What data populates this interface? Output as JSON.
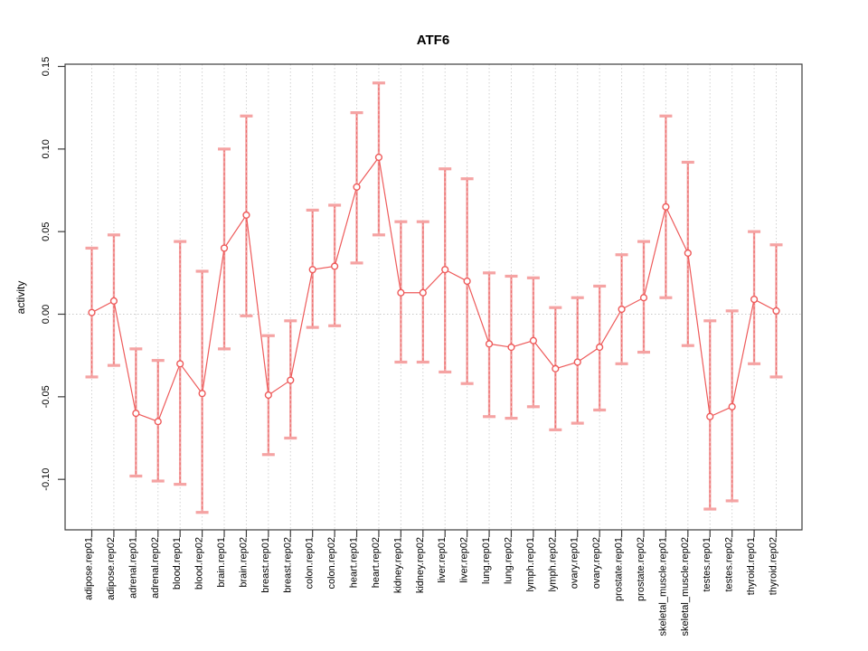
{
  "chart_data": {
    "type": "line",
    "title": "ATF6",
    "xlabel": "",
    "ylabel": "activity",
    "ylim": [
      -0.13,
      0.151
    ],
    "yticks": [
      -0.1,
      -0.05,
      0.0,
      0.05,
      0.1,
      0.15
    ],
    "grid": "vertical dotted gridline at every category; dotted horizontal line at y=0",
    "legend_position": "none",
    "point_style": "open-circle-with-error-bars",
    "categories": [
      "adipose.rep01",
      "adipose.rep02",
      "adrenal.rep01",
      "adrenal.rep02",
      "blood.rep01",
      "blood.rep02",
      "brain.rep01",
      "brain.rep02",
      "breast.rep01",
      "breast.rep02",
      "colon.rep01",
      "colon.rep02",
      "heart.rep01",
      "heart.rep02",
      "kidney.rep01",
      "kidney.rep02",
      "liver.rep01",
      "liver.rep02",
      "lung.rep01",
      "lung.rep02",
      "lymph.rep01",
      "lymph.rep02",
      "ovary.rep01",
      "ovary.rep02",
      "prostate.rep01",
      "prostate.rep02",
      "skeletal_muscle.rep01",
      "skeletal_muscle.rep02",
      "testes.rep01",
      "testes.rep02",
      "thyroid.rep01",
      "thyroid.rep02"
    ],
    "series": [
      {
        "name": "activity",
        "values": [
          0.001,
          0.008,
          -0.06,
          -0.065,
          -0.03,
          -0.048,
          0.04,
          0.06,
          -0.049,
          -0.04,
          0.027,
          0.029,
          0.077,
          0.095,
          0.013,
          0.013,
          0.027,
          0.02,
          -0.018,
          -0.02,
          -0.016,
          -0.033,
          -0.029,
          -0.02,
          0.003,
          0.01,
          0.065,
          0.037,
          -0.062,
          -0.056,
          0.009,
          0.002
        ],
        "error_low": [
          -0.038,
          -0.031,
          -0.098,
          -0.101,
          -0.103,
          -0.12,
          -0.021,
          -0.001,
          -0.085,
          -0.075,
          -0.008,
          -0.007,
          0.031,
          0.048,
          -0.029,
          -0.029,
          -0.035,
          -0.042,
          -0.062,
          -0.063,
          -0.056,
          -0.07,
          -0.066,
          -0.058,
          -0.03,
          -0.023,
          0.01,
          -0.019,
          -0.118,
          -0.113,
          -0.03,
          -0.038
        ],
        "error_high": [
          0.04,
          0.048,
          -0.021,
          -0.028,
          0.044,
          0.026,
          0.1,
          0.12,
          -0.013,
          -0.004,
          0.063,
          0.066,
          0.122,
          0.14,
          0.056,
          0.056,
          0.088,
          0.082,
          0.025,
          0.023,
          0.022,
          0.004,
          0.01,
          0.017,
          0.036,
          0.044,
          0.12,
          0.092,
          -0.004,
          0.002,
          0.05,
          0.042
        ]
      }
    ],
    "colors": {
      "point_line": "#ee5a5a",
      "error_bar": "#ef8686",
      "error_cap": "#f5a3a3",
      "grid": "#d2d2d2",
      "zero_line": "#c8c8c8",
      "axis": "#3c3c3c",
      "text": "#000000",
      "background": "#ffffff"
    }
  }
}
